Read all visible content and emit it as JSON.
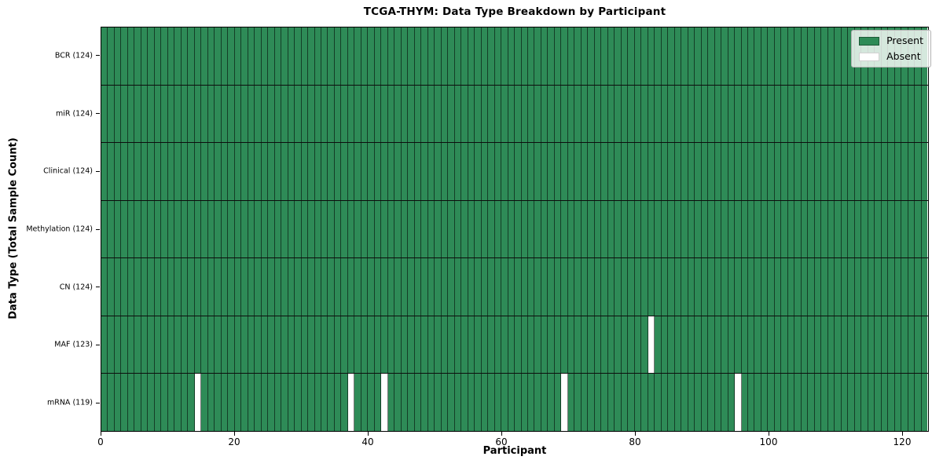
{
  "chart_data": {
    "type": "heatmap",
    "title": "TCGA-THYM: Data Type Breakdown by Participant",
    "xlabel": "Participant",
    "ylabel": "Data Type (Total Sample Count)",
    "n_participants": 124,
    "x_range": [
      0,
      124
    ],
    "x_ticks": [
      0,
      20,
      40,
      60,
      80,
      100,
      120
    ],
    "legend_position": "upper right",
    "grid": false,
    "legend": [
      {
        "label": "Present",
        "color": "#2e8b57"
      },
      {
        "label": "Absent",
        "color": "#ffffff"
      }
    ],
    "rows": [
      {
        "data_type": "BCR",
        "tick_label": "BCR (124)",
        "total_samples": 124,
        "absent_participant_indices": []
      },
      {
        "data_type": "miR",
        "tick_label": "miR (124)",
        "total_samples": 124,
        "absent_participant_indices": []
      },
      {
        "data_type": "Clinical",
        "tick_label": "Clinical (124)",
        "total_samples": 124,
        "absent_participant_indices": []
      },
      {
        "data_type": "Methylation",
        "tick_label": "Methylation (124)",
        "total_samples": 124,
        "absent_participant_indices": []
      },
      {
        "data_type": "CN",
        "tick_label": "CN (124)",
        "total_samples": 124,
        "absent_participant_indices": []
      },
      {
        "data_type": "MAF",
        "tick_label": "MAF (123)",
        "total_samples": 123,
        "absent_participant_indices": [
          82
        ]
      },
      {
        "data_type": "mRNA",
        "tick_label": "mRNA (119)",
        "total_samples": 119,
        "absent_participant_indices": [
          14,
          37,
          42,
          69,
          95
        ]
      }
    ]
  }
}
